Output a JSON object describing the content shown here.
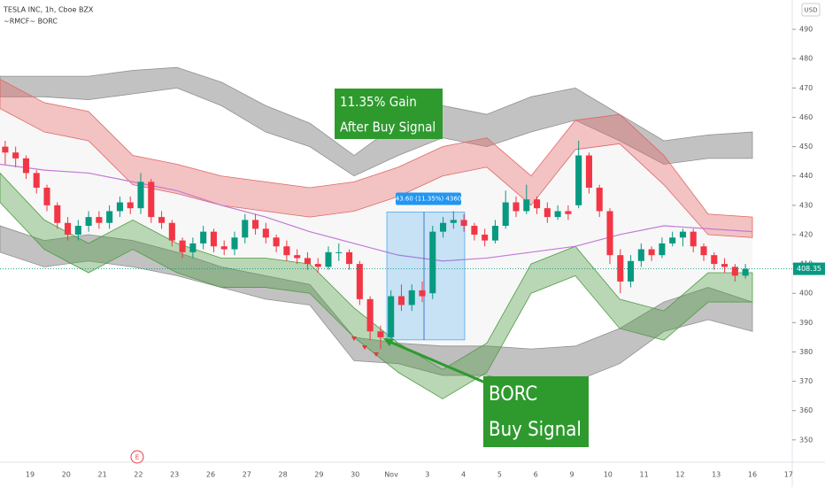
{
  "chart_data": {
    "type": "candlestick",
    "title": "TESLA INC, 1h, Cboe BZX",
    "subtitle": "~RMCF~ BORC",
    "currency": "USD",
    "categories": [
      "19",
      "20",
      "21",
      "22",
      "23",
      "26",
      "27",
      "28",
      "29",
      "30",
      "Nov",
      "3",
      "4",
      "5",
      "6",
      "9",
      "10",
      "11",
      "12",
      "13",
      "16",
      "17"
    ],
    "earnings_label": "E",
    "up_color": "#089981",
    "down_color": "#f23645",
    "open": [
      450,
      448,
      446,
      441,
      436,
      430,
      424,
      420,
      423,
      426,
      424,
      428,
      431,
      429,
      438,
      426,
      424,
      418,
      414,
      417,
      421,
      416,
      415,
      419,
      425,
      422,
      419,
      416,
      413,
      412,
      410,
      409,
      414,
      414,
      410,
      398,
      387,
      385,
      399,
      396,
      401,
      400,
      421,
      424,
      425,
      423,
      420,
      418,
      423,
      431,
      428,
      432,
      429,
      426,
      428,
      430,
      447,
      436,
      428,
      413,
      404,
      411,
      415,
      413,
      417,
      419,
      421,
      416,
      413,
      410,
      409,
      406
    ],
    "high": [
      452,
      450,
      447,
      442,
      437,
      431,
      426,
      425,
      428,
      428,
      430,
      433,
      433,
      441,
      439,
      428,
      425,
      419,
      419,
      423,
      422,
      418,
      421,
      427,
      427,
      424,
      420,
      418,
      415,
      414,
      412,
      416,
      417,
      415,
      411,
      399,
      389,
      401,
      403,
      403,
      404,
      423,
      426,
      428,
      427,
      424,
      422,
      425,
      435,
      433,
      437,
      433,
      431,
      430,
      430,
      452,
      448,
      437,
      429,
      415,
      413,
      417,
      416,
      419,
      421,
      422,
      422,
      417,
      414,
      412,
      410,
      410
    ],
    "low": [
      444,
      443,
      439,
      434,
      428,
      422,
      418,
      418,
      421,
      422,
      422,
      426,
      427,
      427,
      424,
      422,
      416,
      412,
      412,
      415,
      414,
      413,
      413,
      417,
      420,
      417,
      414,
      411,
      410,
      408,
      407,
      408,
      411,
      408,
      396,
      384,
      381,
      384,
      394,
      394,
      397,
      398,
      419,
      422,
      421,
      418,
      416,
      417,
      422,
      426,
      427,
      427,
      424,
      425,
      425,
      429,
      434,
      426,
      410,
      400,
      402,
      409,
      411,
      412,
      416,
      416,
      414,
      411,
      408,
      407,
      404,
      405
    ],
    "close": [
      448,
      446,
      441,
      436,
      430,
      424,
      420,
      423,
      426,
      424,
      428,
      431,
      429,
      438,
      426,
      424,
      418,
      414,
      417,
      421,
      416,
      415,
      419,
      425,
      422,
      419,
      416,
      413,
      412,
      410,
      409,
      414,
      414,
      410,
      398,
      387,
      385,
      399,
      396,
      401,
      399,
      421,
      424,
      425,
      423,
      420,
      418,
      423,
      431,
      428,
      432,
      429,
      426,
      428,
      427,
      447,
      436,
      428,
      413,
      404,
      411,
      415,
      413,
      417,
      419,
      421,
      416,
      413,
      410,
      409,
      406,
      408.35
    ],
    "ylim": [
      343,
      500
    ],
    "yticks": [
      350,
      360,
      370,
      380,
      390,
      400,
      410,
      420,
      430,
      440,
      450,
      460,
      470,
      480,
      490
    ],
    "bands": [
      {
        "color": "#8f8f8f",
        "upper": [
          474,
          474,
          474,
          476,
          477,
          472,
          464,
          458,
          447,
          458,
          464,
          461,
          467,
          470,
          461,
          452,
          454,
          455
        ],
        "lower": [
          467,
          467,
          466,
          468,
          470,
          464,
          455,
          450,
          440,
          447,
          453,
          450,
          455,
          459,
          452,
          444,
          446,
          446
        ]
      },
      {
        "color": "#8f8f8f",
        "upper": [
          423,
          418,
          420,
          418,
          414,
          409,
          406,
          403,
          385,
          383,
          382,
          382,
          381,
          382,
          388,
          397,
          402,
          397
        ],
        "lower": [
          414,
          409,
          411,
          409,
          406,
          402,
          398,
          396,
          377,
          376,
          372,
          372,
          369,
          370,
          376,
          387,
          391,
          387
        ]
      },
      {
        "color": "#e06666",
        "upper": [
          473,
          465,
          462,
          447,
          444,
          440,
          438,
          436,
          438,
          443,
          450,
          453,
          440,
          459,
          461,
          447,
          427,
          426
        ],
        "lower": [
          463,
          455,
          452,
          437,
          434,
          430,
          428,
          426,
          428,
          433,
          440,
          443,
          430,
          449,
          451,
          437,
          420,
          419
        ]
      },
      {
        "color": "#4f9a44",
        "upper": [
          441,
          425,
          417,
          425,
          417,
          412,
          412,
          410,
          395,
          383,
          374,
          383,
          410,
          416,
          398,
          394,
          407,
          407
        ],
        "lower": [
          431,
          415,
          407,
          415,
          407,
          402,
          402,
          400,
          385,
          373,
          364,
          373,
          400,
          406,
          388,
          384,
          397,
          397
        ]
      }
    ],
    "ma": {
      "color": "#c27ad6",
      "values": [
        444,
        442,
        441,
        438,
        435,
        430,
        426,
        421,
        417,
        413,
        411,
        412,
        414,
        416,
        420,
        423,
        422,
        421
      ]
    },
    "measure": {
      "label": "43.60 (11.35%) 4360",
      "from": 384.1,
      "to": 427.7,
      "color": "#2196f3"
    },
    "annotations": [
      {
        "lines": [
          "11.35% Gain",
          "After Buy Signal"
        ],
        "color": "#2e9a2e"
      },
      {
        "lines": [
          "BORC",
          "Buy Signal"
        ],
        "color": "#2e9a2e"
      }
    ]
  }
}
